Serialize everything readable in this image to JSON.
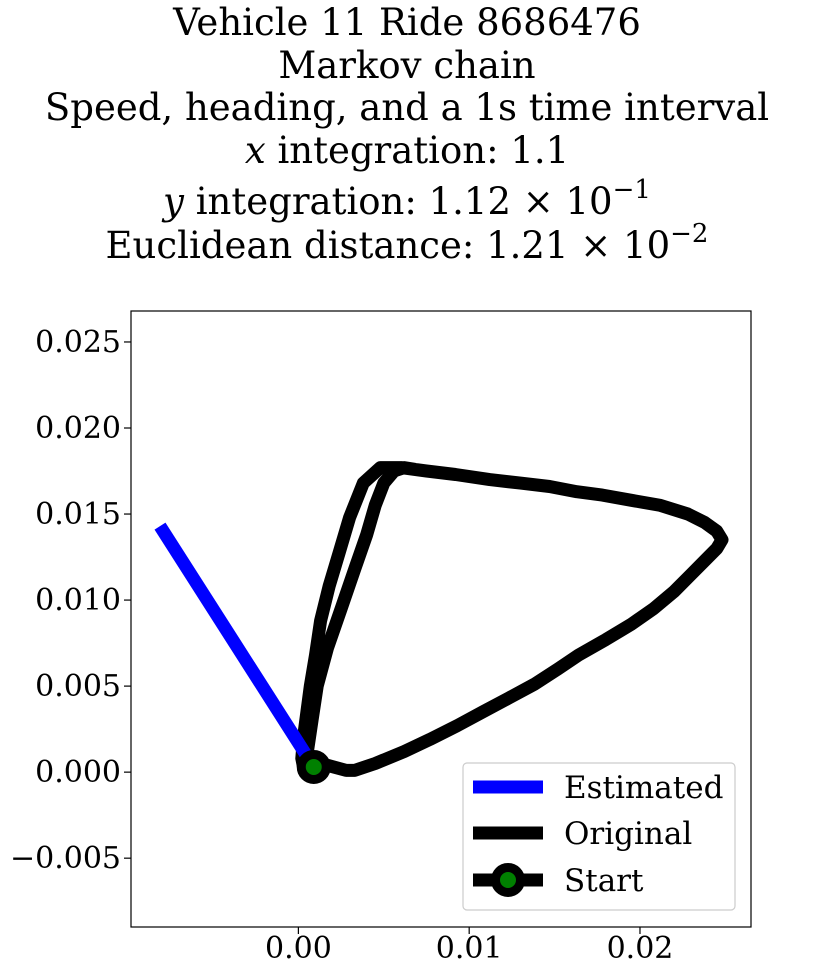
{
  "chart_data": {
    "type": "line",
    "title_lines": [
      "Vehicle 11 Ride 8686476",
      "Markov chain",
      "Speed, heading, and a 1s time interval",
      {
        "var": "x",
        "text": " integration: 1.1"
      },
      {
        "var": "y",
        "text": " integration: 1.12 × 10",
        "exp": "−1"
      },
      {
        "text": "Euclidean distance: 1.21 × 10",
        "exp": "−2"
      }
    ],
    "xlabel": "",
    "ylabel": "",
    "xlim": [
      -0.0098,
      0.0265
    ],
    "ylim": [
      -0.009,
      0.0268
    ],
    "x_ticks": [
      0.0,
      0.01,
      0.02
    ],
    "x_tick_labels": [
      "0.00",
      "0.01",
      "0.02"
    ],
    "y_ticks": [
      -0.005,
      0.0,
      0.005,
      0.01,
      0.015,
      0.02,
      0.025
    ],
    "y_tick_labels": [
      "−0.005",
      "0.000",
      "0.005",
      "0.010",
      "0.015",
      "0.020",
      "0.025"
    ],
    "grid": false,
    "legend_position": "lower-right",
    "series": [
      {
        "name": "Estimated",
        "color": "#0000ff",
        "style": "line",
        "x": [
          0.0009,
          -0.0081
        ],
        "y": [
          0.0003,
          0.0143
        ]
      },
      {
        "name": "Original",
        "color": "#000000",
        "style": "line",
        "x": [
          0.0009,
          0.0017,
          0.0028,
          0.0033,
          0.0045,
          0.0062,
          0.0077,
          0.0093,
          0.0108,
          0.0123,
          0.0138,
          0.0152,
          0.0164,
          0.018,
          0.0195,
          0.0208,
          0.022,
          0.023,
          0.0238,
          0.0245,
          0.0248,
          0.0245,
          0.0238,
          0.0228,
          0.0212,
          0.0195,
          0.0178,
          0.0163,
          0.0147,
          0.013,
          0.0112,
          0.0092,
          0.0075,
          0.006,
          0.0048,
          0.0038,
          0.003,
          0.0024,
          0.0018,
          0.0013,
          0.001,
          0.0007,
          0.0005,
          0.0003,
          0.0002,
          0.0003,
          0.0005,
          0.0008,
          0.0011,
          0.0017,
          0.0025,
          0.0033,
          0.004,
          0.0045,
          0.005,
          0.0056,
          0.0062,
          0.0068
        ],
        "y": [
          0.0004,
          0.0004,
          0.0001,
          0.0001,
          0.0005,
          0.0012,
          0.0019,
          0.0027,
          0.0035,
          0.0043,
          0.0051,
          0.006,
          0.0068,
          0.0077,
          0.0086,
          0.0095,
          0.0105,
          0.0115,
          0.0123,
          0.013,
          0.0135,
          0.014,
          0.0145,
          0.015,
          0.0155,
          0.0158,
          0.0161,
          0.0163,
          0.0166,
          0.0168,
          0.017,
          0.0173,
          0.0175,
          0.0177,
          0.0177,
          0.0168,
          0.0148,
          0.0128,
          0.0108,
          0.0088,
          0.0068,
          0.005,
          0.0035,
          0.002,
          0.0008,
          0.0003,
          0.001,
          0.003,
          0.005,
          0.0072,
          0.0095,
          0.0118,
          0.0138,
          0.0155,
          0.0168,
          0.0175,
          0.0177,
          0.0176
        ]
      },
      {
        "name": "Start",
        "color": "#000000",
        "marker_face": "#008000",
        "style": "marker",
        "x": [
          0.0009
        ],
        "y": [
          0.0003
        ]
      }
    ]
  }
}
